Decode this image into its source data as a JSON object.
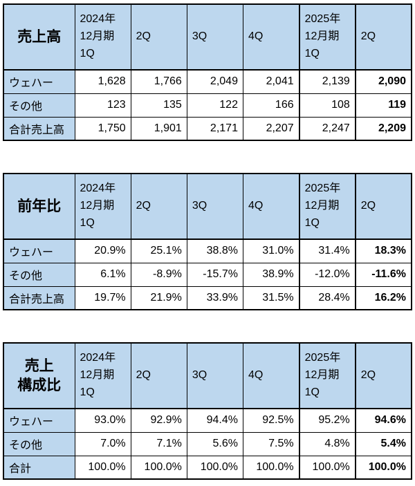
{
  "colors": {
    "header_bg": "#BDD7EE",
    "cell_bg": "#FFFFFF",
    "border": "#000000"
  },
  "tables": [
    {
      "title": "売上高",
      "col_headers": [
        "2024年\n12月期\n1Q",
        "2Q",
        "3Q",
        "4Q",
        "2025年\n12月期\n1Q",
        "2Q"
      ],
      "rows": [
        {
          "label": "ウェハー",
          "values": [
            "1,628",
            "1,766",
            "2,049",
            "2,041",
            "2,139",
            "2,090"
          ]
        },
        {
          "label": "その他",
          "values": [
            "123",
            "135",
            "122",
            "166",
            "108",
            "119"
          ]
        },
        {
          "label": "合計売上高",
          "values": [
            "1,750",
            "1,901",
            "2,171",
            "2,207",
            "2,247",
            "2,209"
          ]
        }
      ]
    },
    {
      "title": "前年比",
      "col_headers": [
        "2024年\n12月期\n1Q",
        "2Q",
        "3Q",
        "4Q",
        "2025年\n12月期\n1Q",
        "2Q"
      ],
      "rows": [
        {
          "label": "ウェハー",
          "values": [
            "20.9%",
            "25.1%",
            "38.8%",
            "31.0%",
            "31.4%",
            "18.3%"
          ]
        },
        {
          "label": "その他",
          "values": [
            "6.1%",
            "-8.9%",
            "-15.7%",
            "38.9%",
            "-12.0%",
            "-11.6%"
          ]
        },
        {
          "label": "合計売上高",
          "values": [
            "19.7%",
            "21.9%",
            "33.9%",
            "31.5%",
            "28.4%",
            "16.2%"
          ]
        }
      ]
    },
    {
      "title": "売上\n構成比",
      "col_headers": [
        "2024年\n12月期\n1Q",
        "2Q",
        "3Q",
        "4Q",
        "2025年\n12月期\n1Q",
        "2Q"
      ],
      "rows": [
        {
          "label": "ウェハー",
          "values": [
            "93.0%",
            "92.9%",
            "94.4%",
            "92.5%",
            "95.2%",
            "94.6%"
          ]
        },
        {
          "label": "その他",
          "values": [
            "7.0%",
            "7.1%",
            "5.6%",
            "7.5%",
            "4.8%",
            "5.4%"
          ]
        },
        {
          "label": "合計",
          "values": [
            "100.0%",
            "100.0%",
            "100.0%",
            "100.0%",
            "100.0%",
            "100.0%"
          ]
        }
      ]
    }
  ],
  "chart_data": [
    {
      "type": "table",
      "title": "売上高",
      "columns": [
        "2024年12月期 1Q",
        "2Q",
        "3Q",
        "4Q",
        "2025年12月期 1Q",
        "2Q"
      ],
      "rows": [
        {
          "label": "ウェハー",
          "values": [
            1628,
            1766,
            2049,
            2041,
            2139,
            2090
          ]
        },
        {
          "label": "その他",
          "values": [
            123,
            135,
            122,
            166,
            108,
            119
          ]
        },
        {
          "label": "合計売上高",
          "values": [
            1750,
            1901,
            2171,
            2207,
            2247,
            2209
          ]
        }
      ]
    },
    {
      "type": "table",
      "title": "前年比",
      "unit": "%",
      "columns": [
        "2024年12月期 1Q",
        "2Q",
        "3Q",
        "4Q",
        "2025年12月期 1Q",
        "2Q"
      ],
      "rows": [
        {
          "label": "ウェハー",
          "values": [
            20.9,
            25.1,
            38.8,
            31.0,
            31.4,
            18.3
          ]
        },
        {
          "label": "その他",
          "values": [
            6.1,
            -8.9,
            -15.7,
            38.9,
            -12.0,
            -11.6
          ]
        },
        {
          "label": "合計売上高",
          "values": [
            19.7,
            21.9,
            33.9,
            31.5,
            28.4,
            16.2
          ]
        }
      ]
    },
    {
      "type": "table",
      "title": "売上構成比",
      "unit": "%",
      "columns": [
        "2024年12月期 1Q",
        "2Q",
        "3Q",
        "4Q",
        "2025年12月期 1Q",
        "2Q"
      ],
      "rows": [
        {
          "label": "ウェハー",
          "values": [
            93.0,
            92.9,
            94.4,
            92.5,
            95.2,
            94.6
          ]
        },
        {
          "label": "その他",
          "values": [
            7.0,
            7.1,
            5.6,
            7.5,
            4.8,
            5.4
          ]
        },
        {
          "label": "合計",
          "values": [
            100.0,
            100.0,
            100.0,
            100.0,
            100.0,
            100.0
          ]
        }
      ]
    }
  ]
}
